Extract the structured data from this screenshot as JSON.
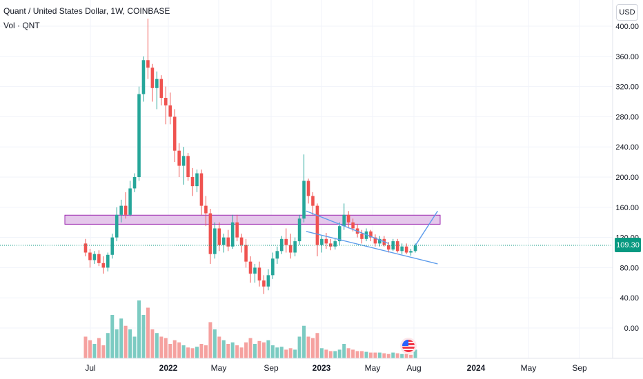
{
  "header": {
    "title": "Quant / United States Dollar, 1W, COINBASE",
    "volume_label": "Vol · QNT",
    "currency_button": "USD"
  },
  "last_price": "109.30",
  "colors": {
    "up": "#26a69a",
    "down": "#ef5350",
    "vol_up": "#7ccbc2",
    "vol_down": "#f5a19f",
    "zone_fill": "#e1bee7",
    "zone_stroke": "#9c27b0",
    "trendline": "#5d9cec",
    "grid": "#f0f3fa",
    "price_tag": "#089981"
  },
  "icons": {
    "flag": "us-flag-icon"
  },
  "chart_data": {
    "type": "candlestick",
    "y_axis_ticks": [
      "400.00",
      "360.00",
      "320.00",
      "280.00",
      "240.00",
      "200.00",
      "160.00",
      "120.00",
      "80.00",
      "40.00",
      "0.00"
    ],
    "y_tick_values": [
      400,
      360,
      320,
      280,
      240,
      200,
      160,
      120,
      80,
      40,
      0
    ],
    "x_axis_labels": [
      "Jul",
      "2022",
      "May",
      "Sep",
      "2023",
      "May",
      "Aug",
      "2024",
      "May",
      "Sep"
    ],
    "candles": [
      [
        0,
        112,
        118,
        95,
        100
      ],
      [
        1,
        100,
        105,
        80,
        90
      ],
      [
        2,
        90,
        102,
        85,
        98
      ],
      [
        3,
        98,
        103,
        82,
        86
      ],
      [
        4,
        86,
        95,
        72,
        80
      ],
      [
        5,
        80,
        100,
        75,
        97
      ],
      [
        6,
        97,
        125,
        92,
        120
      ],
      [
        7,
        120,
        160,
        115,
        150
      ],
      [
        8,
        150,
        170,
        140,
        162
      ],
      [
        9,
        162,
        180,
        145,
        150
      ],
      [
        10,
        150,
        195,
        148,
        185
      ],
      [
        11,
        185,
        205,
        180,
        200
      ],
      [
        12,
        200,
        320,
        195,
        310
      ],
      [
        13,
        310,
        360,
        300,
        355
      ],
      [
        14,
        355,
        410,
        330,
        345
      ],
      [
        15,
        345,
        350,
        300,
        318
      ],
      [
        16,
        318,
        340,
        290,
        330
      ],
      [
        17,
        330,
        335,
        295,
        305
      ],
      [
        18,
        305,
        320,
        270,
        295
      ],
      [
        19,
        295,
        312,
        270,
        280
      ],
      [
        20,
        280,
        290,
        220,
        235
      ],
      [
        21,
        235,
        245,
        200,
        215
      ],
      [
        22,
        215,
        240,
        190,
        228
      ],
      [
        23,
        228,
        232,
        195,
        200
      ],
      [
        24,
        200,
        212,
        175,
        188
      ],
      [
        25,
        188,
        210,
        180,
        205
      ],
      [
        26,
        205,
        210,
        150,
        162
      ],
      [
        27,
        162,
        175,
        135,
        152
      ],
      [
        28,
        152,
        158,
        85,
        98
      ],
      [
        29,
        98,
        140,
        92,
        132
      ],
      [
        30,
        132,
        140,
        102,
        110
      ],
      [
        31,
        110,
        125,
        100,
        120
      ],
      [
        32,
        120,
        130,
        102,
        108
      ],
      [
        33,
        108,
        150,
        105,
        140
      ],
      [
        34,
        140,
        150,
        115,
        120
      ],
      [
        35,
        120,
        125,
        100,
        110
      ],
      [
        36,
        110,
        118,
        80,
        88
      ],
      [
        37,
        88,
        95,
        60,
        72
      ],
      [
        38,
        72,
        85,
        60,
        80
      ],
      [
        39,
        80,
        88,
        55,
        63
      ],
      [
        40,
        63,
        70,
        45,
        55
      ],
      [
        41,
        55,
        78,
        50,
        70
      ],
      [
        42,
        70,
        100,
        65,
        92
      ],
      [
        43,
        92,
        108,
        85,
        102
      ],
      [
        44,
        102,
        122,
        98,
        118
      ],
      [
        45,
        118,
        132,
        100,
        110
      ],
      [
        46,
        110,
        125,
        92,
        100
      ],
      [
        47,
        100,
        120,
        95,
        115
      ],
      [
        48,
        115,
        150,
        110,
        145
      ],
      [
        49,
        145,
        230,
        140,
        195
      ],
      [
        50,
        195,
        198,
        165,
        175
      ],
      [
        51,
        175,
        180,
        150,
        162
      ],
      [
        52,
        162,
        165,
        95,
        110
      ],
      [
        53,
        110,
        122,
        100,
        118
      ],
      [
        54,
        118,
        126,
        105,
        112
      ],
      [
        55,
        112,
        118,
        103,
        108
      ],
      [
        56,
        108,
        118,
        104,
        115
      ],
      [
        57,
        115,
        140,
        110,
        135
      ],
      [
        58,
        135,
        165,
        130,
        150
      ],
      [
        59,
        150,
        155,
        132,
        140
      ],
      [
        60,
        140,
        145,
        128,
        132
      ],
      [
        61,
        132,
        138,
        120,
        125
      ],
      [
        62,
        125,
        130,
        112,
        118
      ],
      [
        63,
        118,
        132,
        115,
        128
      ],
      [
        64,
        128,
        130,
        115,
        120
      ],
      [
        65,
        120,
        124,
        108,
        112
      ],
      [
        66,
        112,
        122,
        108,
        118
      ],
      [
        67,
        118,
        122,
        108,
        110
      ],
      [
        68,
        110,
        114,
        100,
        104
      ],
      [
        69,
        104,
        118,
        102,
        115
      ],
      [
        70,
        115,
        118,
        100,
        102
      ],
      [
        71,
        102,
        112,
        98,
        108
      ],
      [
        72,
        108,
        112,
        98,
        100
      ],
      [
        73,
        100,
        105,
        96,
        102
      ],
      [
        74,
        102,
        112,
        100,
        109.3
      ]
    ],
    "volume": [
      [
        0,
        30,
        "down"
      ],
      [
        1,
        25,
        "down"
      ],
      [
        2,
        20,
        "up"
      ],
      [
        3,
        28,
        "down"
      ],
      [
        4,
        18,
        "down"
      ],
      [
        5,
        35,
        "up"
      ],
      [
        6,
        60,
        "up"
      ],
      [
        7,
        40,
        "up"
      ],
      [
        8,
        55,
        "up"
      ],
      [
        9,
        45,
        "down"
      ],
      [
        10,
        40,
        "up"
      ],
      [
        11,
        30,
        "up"
      ],
      [
        12,
        80,
        "up"
      ],
      [
        13,
        60,
        "up"
      ],
      [
        14,
        70,
        "down"
      ],
      [
        15,
        40,
        "down"
      ],
      [
        16,
        35,
        "up"
      ],
      [
        17,
        30,
        "down"
      ],
      [
        18,
        28,
        "down"
      ],
      [
        19,
        20,
        "down"
      ],
      [
        20,
        25,
        "down"
      ],
      [
        21,
        22,
        "down"
      ],
      [
        22,
        18,
        "up"
      ],
      [
        23,
        15,
        "down"
      ],
      [
        24,
        14,
        "down"
      ],
      [
        25,
        16,
        "up"
      ],
      [
        26,
        20,
        "down"
      ],
      [
        27,
        18,
        "down"
      ],
      [
        28,
        50,
        "down"
      ],
      [
        29,
        40,
        "up"
      ],
      [
        30,
        30,
        "down"
      ],
      [
        31,
        25,
        "up"
      ],
      [
        32,
        20,
        "down"
      ],
      [
        33,
        22,
        "up"
      ],
      [
        34,
        18,
        "down"
      ],
      [
        35,
        15,
        "down"
      ],
      [
        36,
        22,
        "down"
      ],
      [
        37,
        28,
        "down"
      ],
      [
        38,
        20,
        "up"
      ],
      [
        39,
        24,
        "down"
      ],
      [
        40,
        22,
        "down"
      ],
      [
        41,
        25,
        "up"
      ],
      [
        42,
        18,
        "up"
      ],
      [
        43,
        15,
        "up"
      ],
      [
        44,
        16,
        "up"
      ],
      [
        45,
        12,
        "down"
      ],
      [
        46,
        14,
        "down"
      ],
      [
        47,
        12,
        "up"
      ],
      [
        48,
        30,
        "up"
      ],
      [
        49,
        45,
        "up"
      ],
      [
        50,
        30,
        "down"
      ],
      [
        51,
        28,
        "down"
      ],
      [
        52,
        35,
        "down"
      ],
      [
        53,
        14,
        "up"
      ],
      [
        54,
        12,
        "down"
      ],
      [
        55,
        10,
        "down"
      ],
      [
        56,
        10,
        "up"
      ],
      [
        57,
        12,
        "up"
      ],
      [
        58,
        20,
        "up"
      ],
      [
        59,
        14,
        "down"
      ],
      [
        60,
        12,
        "down"
      ],
      [
        61,
        10,
        "down"
      ],
      [
        62,
        10,
        "down"
      ],
      [
        63,
        9,
        "up"
      ],
      [
        64,
        8,
        "down"
      ],
      [
        65,
        8,
        "down"
      ],
      [
        66,
        8,
        "up"
      ],
      [
        67,
        7,
        "down"
      ],
      [
        68,
        6,
        "down"
      ],
      [
        69,
        8,
        "up"
      ],
      [
        70,
        7,
        "down"
      ],
      [
        71,
        6,
        "up"
      ],
      [
        72,
        6,
        "down"
      ],
      [
        73,
        5,
        "down"
      ],
      [
        74,
        12,
        "up"
      ]
    ],
    "resistance_zone": {
      "price_low": 138,
      "price_high": 150,
      "from_index": -4,
      "to_index": 114
    },
    "trendlines": [
      {
        "name": "upper-trendline",
        "from": [
          49.5,
          155
        ],
        "to": [
          68,
          112
        ]
      },
      {
        "name": "lower-trendline",
        "from": [
          49.5,
          128
        ],
        "to": [
          79,
          85
        ]
      },
      {
        "name": "projection-line",
        "from": [
          74,
          109.3
        ],
        "to": [
          79,
          155
        ]
      }
    ]
  }
}
